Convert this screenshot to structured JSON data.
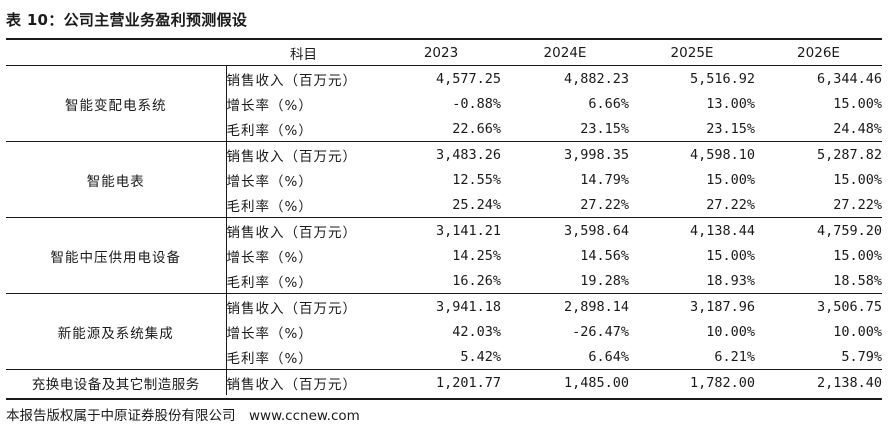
{
  "title": "表 10：公司主营业务盈利预测假设",
  "header": {
    "item": "科目",
    "years": [
      "2023",
      "2024E",
      "2025E",
      "2026E"
    ]
  },
  "segments": [
    {
      "name": "智能变配电系统",
      "rows": [
        {
          "metric": "销售收入（百万元）",
          "values": [
            "4,577.25",
            "4,882.23",
            "5,516.92",
            "6,344.46"
          ]
        },
        {
          "metric": "增长率（%）",
          "values": [
            "-0.88%",
            "6.66%",
            "13.00%",
            "15.00%"
          ]
        },
        {
          "metric": "毛利率（%）",
          "values": [
            "22.66%",
            "23.15%",
            "23.15%",
            "24.48%"
          ]
        }
      ]
    },
    {
      "name": "智能电表",
      "rows": [
        {
          "metric": "销售收入（百万元）",
          "values": [
            "3,483.26",
            "3,998.35",
            "4,598.10",
            "5,287.82"
          ]
        },
        {
          "metric": "增长率（%）",
          "values": [
            "12.55%",
            "14.79%",
            "15.00%",
            "15.00%"
          ]
        },
        {
          "metric": "毛利率（%）",
          "values": [
            "25.24%",
            "27.22%",
            "27.22%",
            "27.22%"
          ]
        }
      ]
    },
    {
      "name": "智能中压供用电设备",
      "rows": [
        {
          "metric": "销售收入（百万元）",
          "values": [
            "3,141.21",
            "3,598.64",
            "4,138.44",
            "4,759.20"
          ]
        },
        {
          "metric": "增长率（%）",
          "values": [
            "14.25%",
            "14.56%",
            "15.00%",
            "15.00%"
          ]
        },
        {
          "metric": "毛利率（%）",
          "values": [
            "16.26%",
            "19.28%",
            "18.93%",
            "18.58%"
          ]
        }
      ]
    },
    {
      "name": "新能源及系统集成",
      "rows": [
        {
          "metric": "销售收入（百万元）",
          "values": [
            "3,941.18",
            "2,898.14",
            "3,187.96",
            "3,506.75"
          ]
        },
        {
          "metric": "增长率（%）",
          "values": [
            "42.03%",
            "-26.47%",
            "10.00%",
            "10.00%"
          ]
        },
        {
          "metric": "毛利率（%）",
          "values": [
            "5.42%",
            "6.64%",
            "6.21%",
            "5.79%"
          ]
        }
      ]
    },
    {
      "name": "充换电设备及其它制造服务",
      "rows": [
        {
          "metric": "销售收入（百万元）",
          "values": [
            "1,201.77",
            "1,485.00",
            "1,782.00",
            "2,138.40"
          ]
        }
      ]
    }
  ],
  "source": "本报告版权属于中原证券股份有限公司　www.ccnew.com"
}
